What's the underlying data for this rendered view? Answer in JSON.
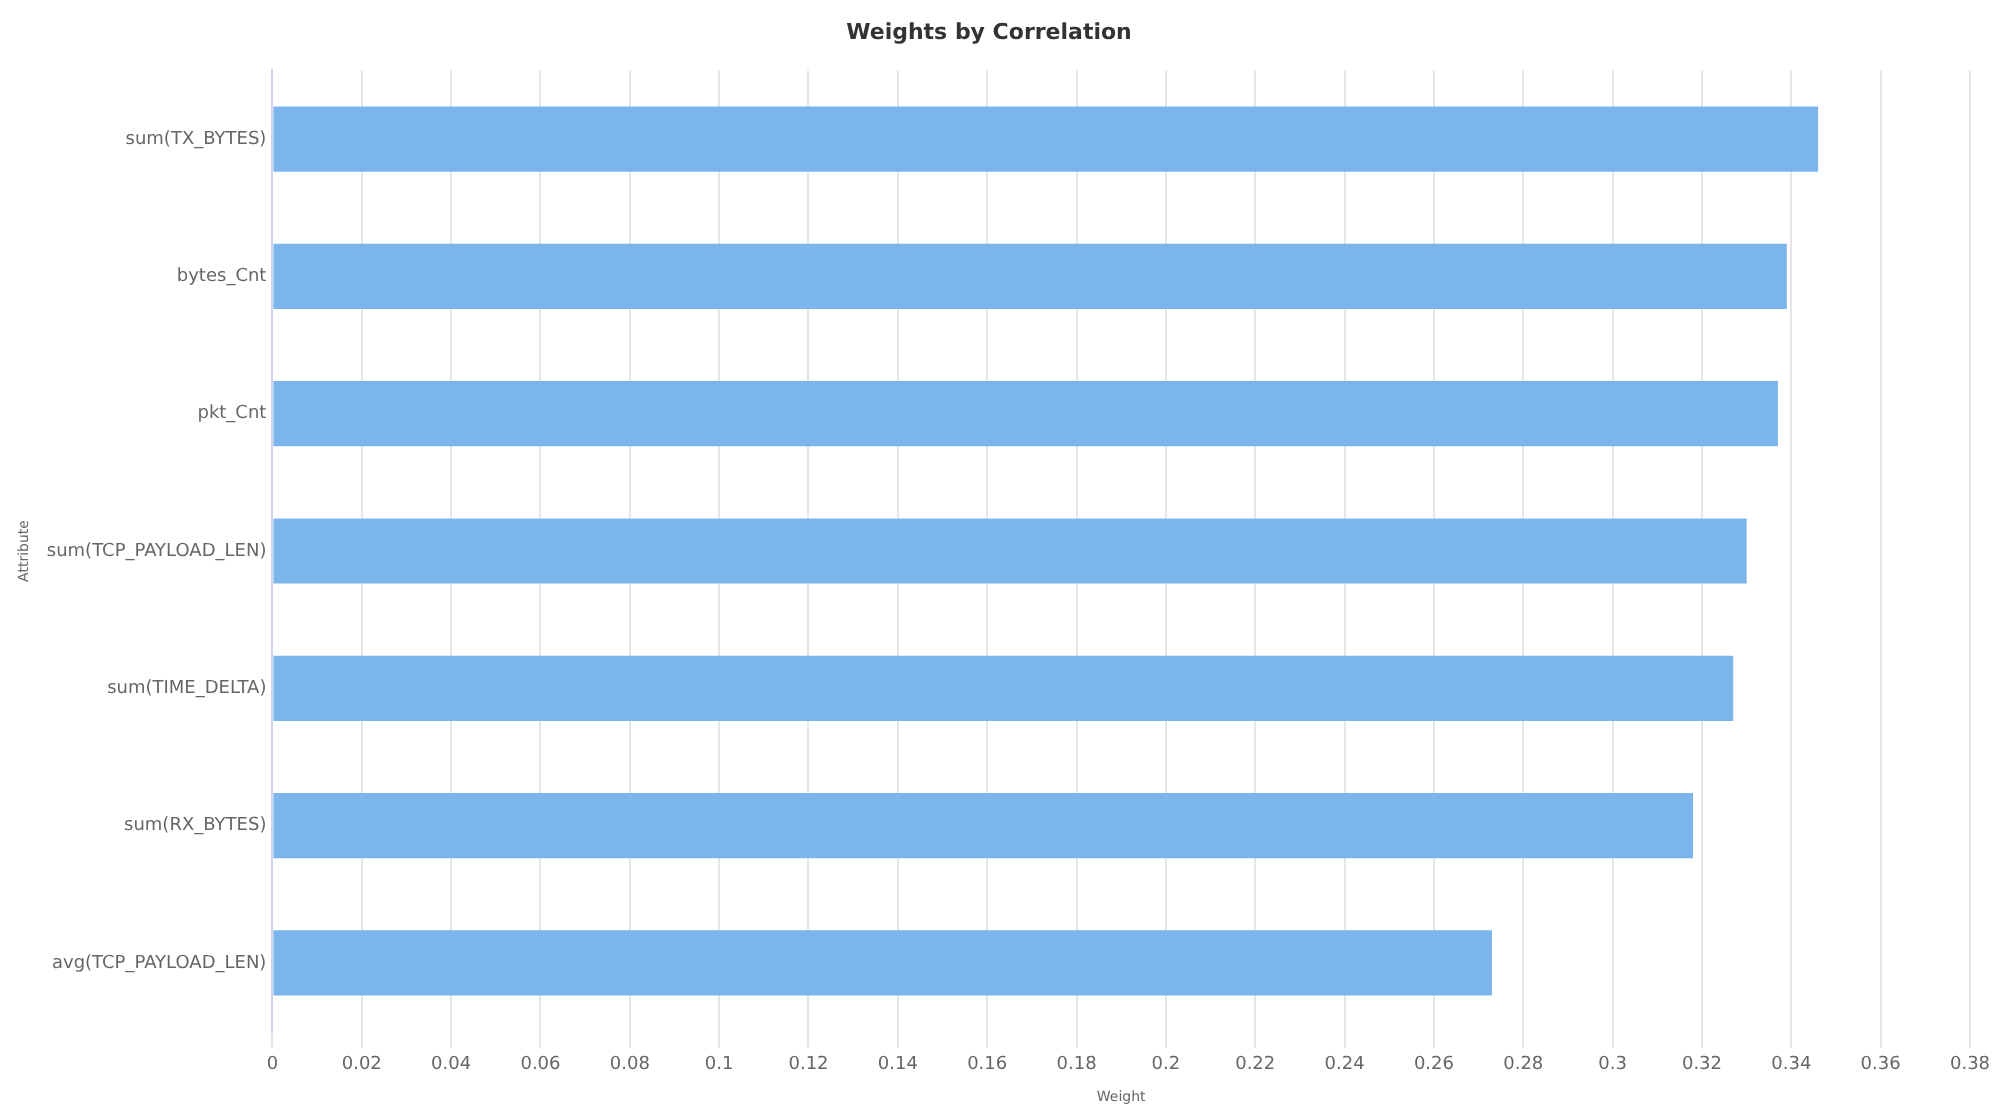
{
  "chart_data": {
    "type": "bar",
    "orientation": "horizontal",
    "title": "Weights by Correlation",
    "xlabel": "Weight",
    "ylabel": "Attribute",
    "categories": [
      "sum(TX_BYTES)",
      "bytes_Cnt",
      "pkt_Cnt",
      "sum(TCP_PAYLOAD_LEN)",
      "sum(TIME_DELTA)",
      "sum(RX_BYTES)",
      "avg(TCP_PAYLOAD_LEN)"
    ],
    "values": [
      0.346,
      0.339,
      0.337,
      0.33,
      0.327,
      0.318,
      0.273
    ],
    "color": "#7cb5ec",
    "xlim": [
      0,
      0.38
    ],
    "xticks": [
      0,
      0.02,
      0.04,
      0.06,
      0.08,
      0.1,
      0.12,
      0.14,
      0.16,
      0.18,
      0.2,
      0.22,
      0.24,
      0.26,
      0.28,
      0.3,
      0.32,
      0.34,
      0.36,
      0.38
    ],
    "grid": "x",
    "legend": false
  }
}
